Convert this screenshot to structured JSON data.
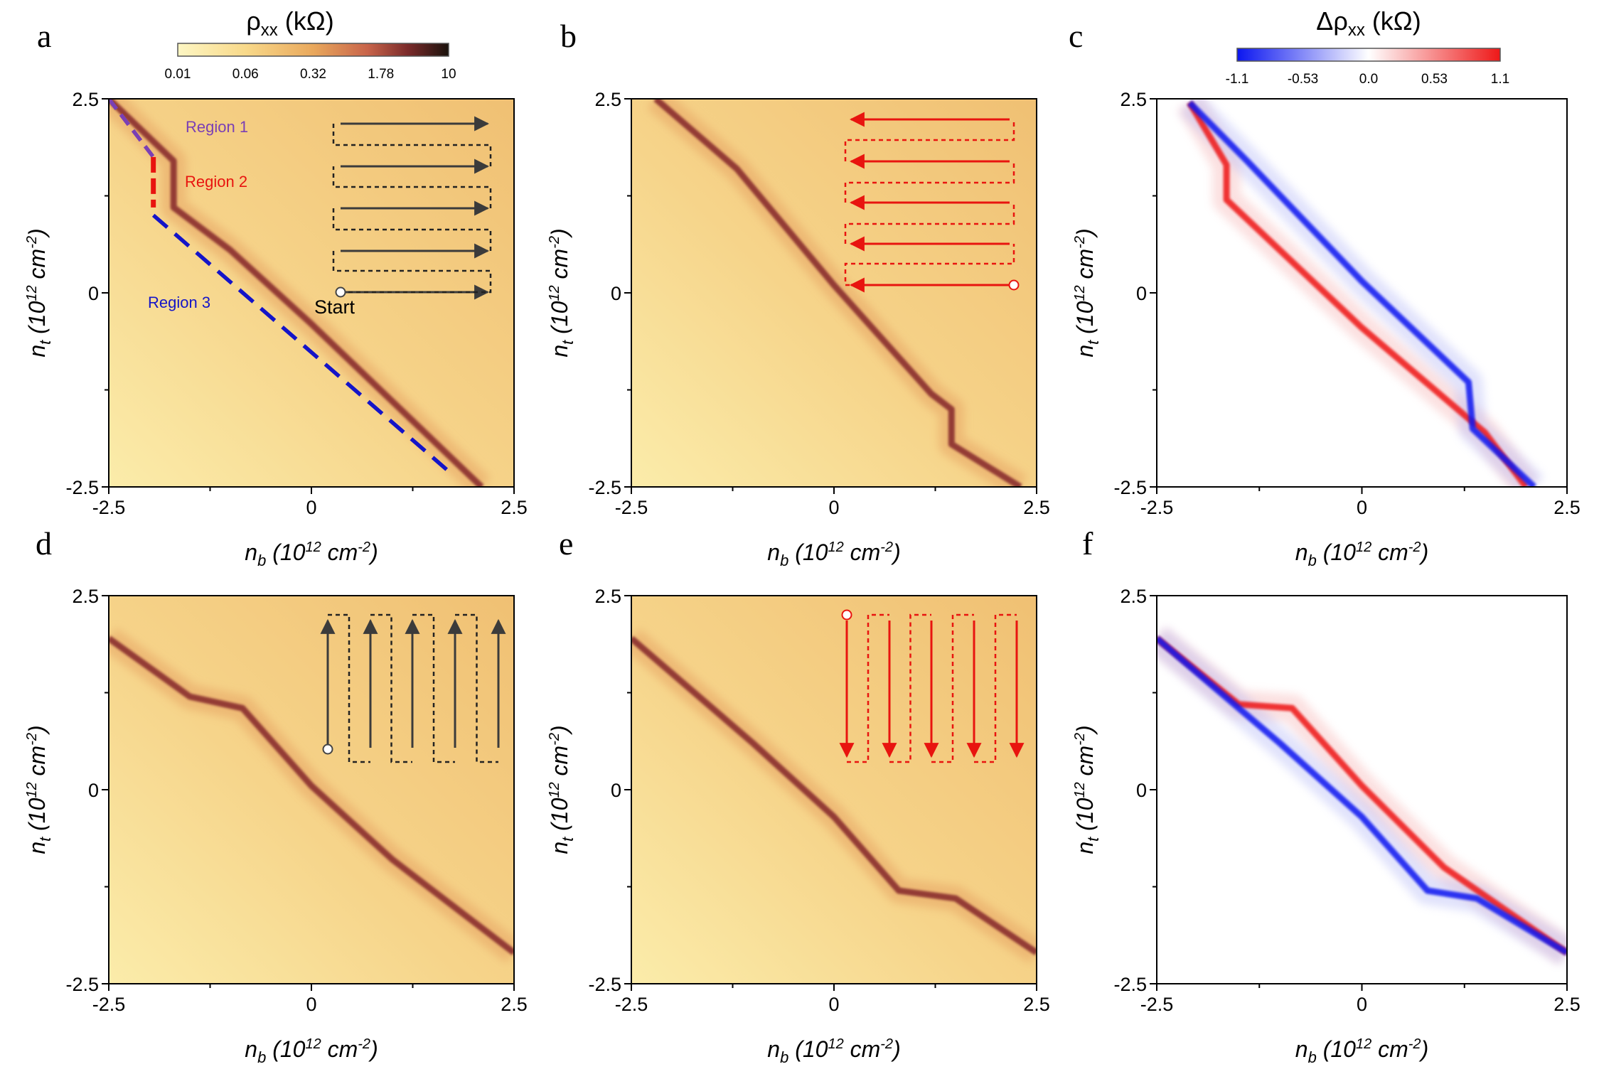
{
  "figure": {
    "panel_letters": [
      "a",
      "b",
      "c",
      "d",
      "e",
      "f"
    ]
  },
  "colorbars": {
    "rho": {
      "title_main": "ρ",
      "title_sub": "xx",
      "title_unit": " (kΩ)",
      "ticks": [
        "0.01",
        "0.06",
        "0.32",
        "1.78",
        "10"
      ],
      "colors": [
        "#fdf6c3",
        "#f8d98a",
        "#e9a85c",
        "#c8644a",
        "#7a2a2a",
        "#1a120c"
      ]
    },
    "delta": {
      "title_main": "Δρ",
      "title_sub": "xx",
      "title_unit": " (kΩ)",
      "ticks": [
        "-1.1",
        "-0.53",
        "0.0",
        "0.53",
        "1.1"
      ],
      "colors": [
        "#0b16f0",
        "#ffffff",
        "#ee1818"
      ]
    }
  },
  "axes": {
    "x_ticks": [
      "-2.5",
      "0",
      "2.5"
    ],
    "y_ticks": [
      "2.5",
      "0",
      "-2.5"
    ],
    "xlabel_var": "n",
    "xlabel_sub": "b",
    "xlabel_unit_pre": " (10",
    "xlabel_exp": "12",
    "xlabel_unit_mid": " cm",
    "xlabel_exp2": "-2",
    "xlabel_close": ")",
    "ylabel_var": "n",
    "ylabel_sub": "t"
  },
  "annotations": {
    "region1": "Region 1",
    "region2": "Region 2",
    "region3": "Region 3",
    "start": "Start"
  },
  "colors": {
    "region1": "#7a3fb5",
    "region2": "#e8140f",
    "region3": "#1414c8",
    "sweep_black": "#3b3b3b",
    "sweep_red": "#e8140f",
    "heat_bg": "#f6d48a",
    "heat_line": "#8a2e2e"
  },
  "chart_data": [
    {
      "panel": "a",
      "type": "heatmap",
      "quantity": "rho_xx (kOhm)",
      "x_range": [
        -2.5,
        2.5
      ],
      "y_range": [
        -2.5,
        2.5
      ],
      "sweep": "horizontal, forward (left to right), starting at n_t = 0",
      "ridge": [
        [
          -2.5,
          2.5
        ],
        [
          -1.7,
          1.7
        ],
        [
          -1.7,
          1.1
        ],
        [
          -1.0,
          0.55
        ],
        [
          0,
          -0.4
        ],
        [
          1.0,
          -1.4
        ],
        [
          2.1,
          -2.5
        ]
      ],
      "guide_lines": [
        {
          "region": "Region 1",
          "points": [
            [
              -2.5,
              2.5
            ],
            [
              -1.95,
              1.75
            ]
          ]
        },
        {
          "region": "Region 2",
          "points": [
            [
              -1.95,
              1.75
            ],
            [
              -1.95,
              1.1
            ]
          ]
        },
        {
          "region": "Region 3",
          "points": [
            [
              -1.95,
              1.0
            ],
            [
              1.75,
              -2.35
            ]
          ]
        }
      ]
    },
    {
      "panel": "b",
      "type": "heatmap",
      "quantity": "rho_xx (kOhm)",
      "x_range": [
        -2.5,
        2.5
      ],
      "y_range": [
        -2.5,
        2.5
      ],
      "sweep": "horizontal, backward (right to left), starting at n_t = 0",
      "ridge": [
        [
          -2.2,
          2.5
        ],
        [
          -1.2,
          1.6
        ],
        [
          0,
          0.1
        ],
        [
          1.2,
          -1.3
        ],
        [
          1.45,
          -1.5
        ],
        [
          1.45,
          -1.95
        ],
        [
          2.3,
          -2.5
        ]
      ]
    },
    {
      "panel": "c",
      "type": "heatmap",
      "quantity": "Delta rho_xx (kOhm)",
      "x_range": [
        -2.5,
        2.5
      ],
      "y_range": [
        -2.5,
        2.5
      ],
      "red_ridge": [
        [
          -2.1,
          2.45
        ],
        [
          -1.65,
          1.65
        ],
        [
          -1.65,
          1.2
        ],
        [
          0,
          -0.45
        ],
        [
          1.5,
          -1.8
        ],
        [
          2.0,
          -2.5
        ]
      ],
      "blue_ridge": [
        [
          -2.1,
          2.45
        ],
        [
          -1.4,
          1.7
        ],
        [
          0,
          0.15
        ],
        [
          1.3,
          -1.15
        ],
        [
          1.35,
          -1.75
        ],
        [
          2.1,
          -2.5
        ]
      ]
    },
    {
      "panel": "d",
      "type": "heatmap",
      "quantity": "rho_xx (kOhm)",
      "x_range": [
        -2.5,
        2.5
      ],
      "y_range": [
        -2.5,
        2.5
      ],
      "sweep": "vertical, upward, starting at n_t = 0.5",
      "ridge": [
        [
          -2.5,
          1.95
        ],
        [
          -1.5,
          1.2
        ],
        [
          -0.85,
          1.05
        ],
        [
          0,
          0.05
        ],
        [
          1.0,
          -0.9
        ],
        [
          2.5,
          -2.1
        ]
      ]
    },
    {
      "panel": "e",
      "type": "heatmap",
      "quantity": "rho_xx (kOhm)",
      "x_range": [
        -2.5,
        2.5
      ],
      "y_range": [
        -2.5,
        2.5
      ],
      "sweep": "vertical, downward, starting at n_t = 2.2",
      "ridge": [
        [
          -2.5,
          1.95
        ],
        [
          -1.0,
          0.6
        ],
        [
          0,
          -0.35
        ],
        [
          0.8,
          -1.3
        ],
        [
          1.5,
          -1.4
        ],
        [
          2.5,
          -2.1
        ]
      ]
    },
    {
      "panel": "f",
      "type": "heatmap",
      "quantity": "Delta rho_xx (kOhm)",
      "x_range": [
        -2.5,
        2.5
      ],
      "y_range": [
        -2.5,
        2.5
      ],
      "red_ridge": [
        [
          -2.5,
          1.95
        ],
        [
          -1.5,
          1.1
        ],
        [
          -0.85,
          1.05
        ],
        [
          0,
          0.05
        ],
        [
          1.0,
          -1.0
        ],
        [
          2.5,
          -2.1
        ]
      ],
      "blue_ridge": [
        [
          -2.5,
          1.95
        ],
        [
          -1.0,
          0.6
        ],
        [
          0,
          -0.35
        ],
        [
          0.8,
          -1.3
        ],
        [
          1.4,
          -1.4
        ],
        [
          2.5,
          -2.1
        ]
      ]
    }
  ]
}
